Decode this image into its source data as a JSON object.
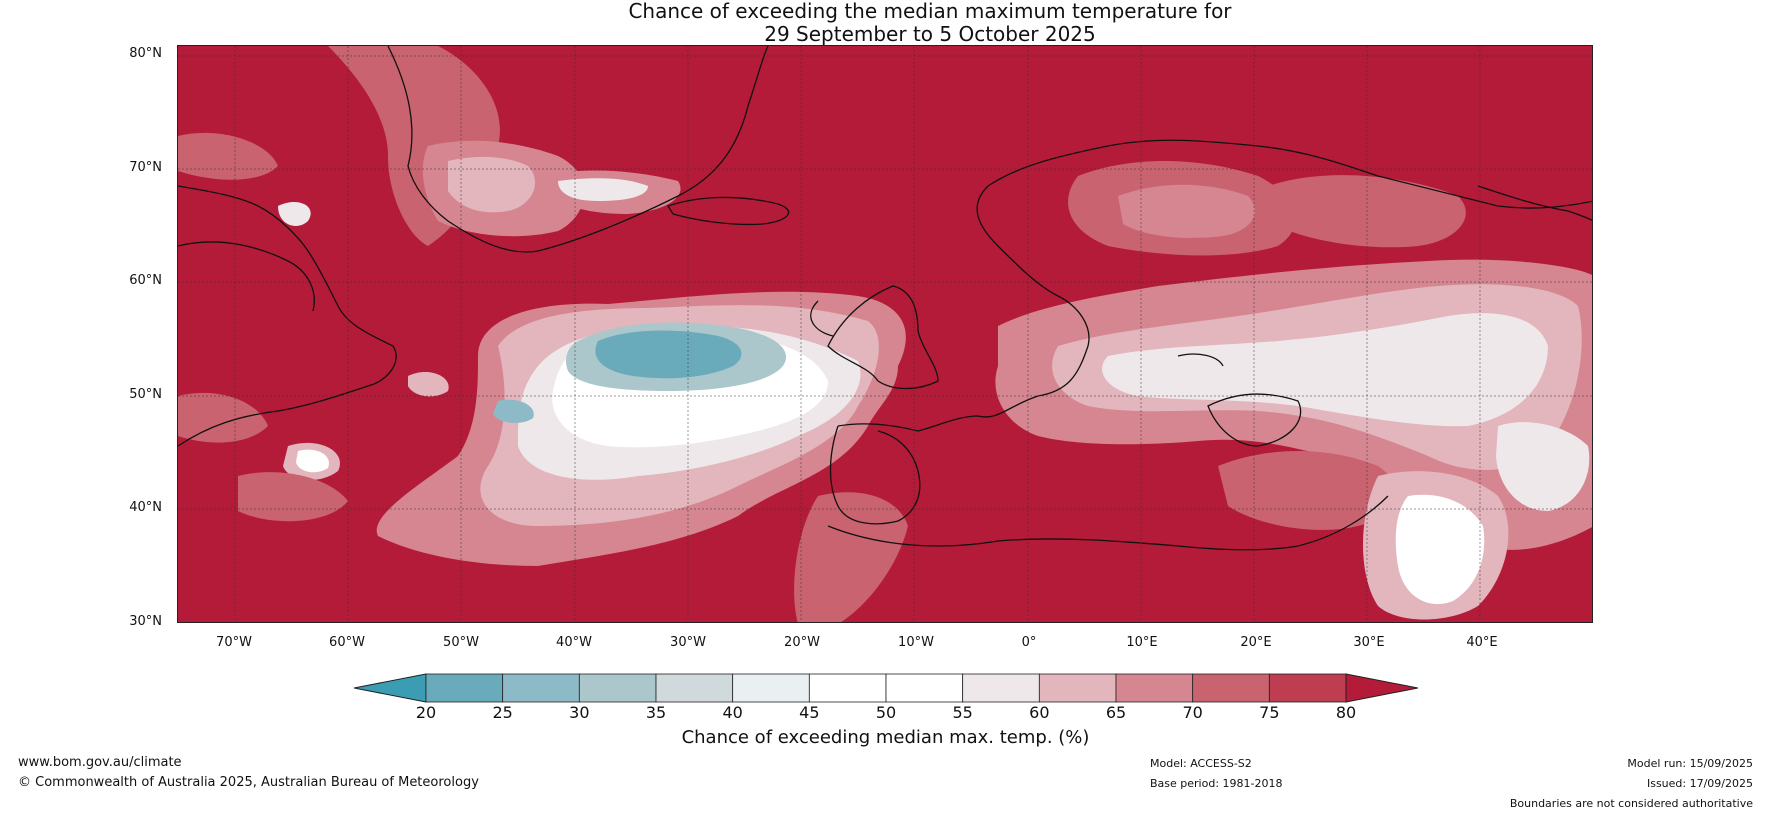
{
  "title": {
    "line1": "Chance of exceeding the median maximum temperature for",
    "line2": "29 September to 5 October 2025"
  },
  "map": {
    "lat_labels": [
      "80°N",
      "70°N",
      "60°N",
      "50°N",
      "40°N",
      "30°N"
    ],
    "lon_labels": [
      "70°W",
      "60°W",
      "50°W",
      "40°W",
      "30°W",
      "20°W",
      "10°W",
      "0°",
      "10°E",
      "20°E",
      "30°E",
      "40°E"
    ],
    "lat_range": [
      30,
      81
    ],
    "lon_range": [
      -75,
      50
    ]
  },
  "colorbar": {
    "ticks": [
      "20",
      "25",
      "30",
      "35",
      "40",
      "45",
      "50",
      "55",
      "60",
      "65",
      "70",
      "75",
      "80"
    ],
    "colors": [
      "#3b9db3",
      "#6aabbb",
      "#8cbac6",
      "#acc7cc",
      "#d0d9dc",
      "#eaf0f1",
      "#ffffff",
      "#ffffff",
      "#efe8ea",
      "#e3b5bc",
      "#d58690",
      "#c9636f",
      "#bf3d50",
      "#b31b38"
    ],
    "label": "Chance of exceeding median max. temp. (%)"
  },
  "footer": {
    "website": "www.bom.gov.au/climate",
    "copyright": "© Commonwealth of Australia 2025, Australian Bureau of Meteorology",
    "model": "Model: ACCESS-S2",
    "base_period": "Base period: 1981-2018",
    "model_run": "Model run: 15/09/2025",
    "issued": "Issued: 17/09/2025",
    "disclaimer": "Boundaries are not considered authoritative"
  }
}
